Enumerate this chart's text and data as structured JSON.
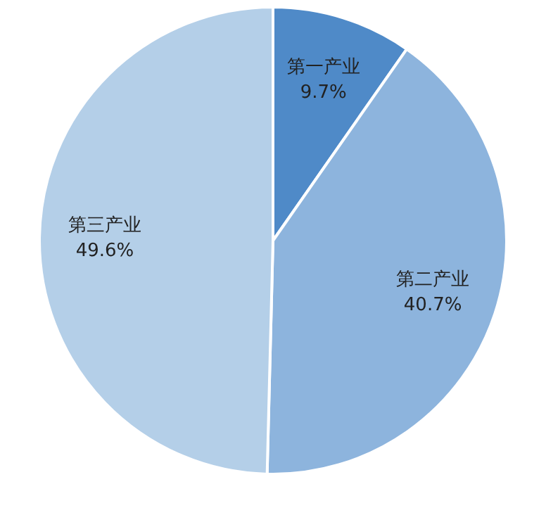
{
  "chart_data": {
    "type": "pie",
    "categories": [
      "第一产业",
      "第二产业",
      "第三产业"
    ],
    "values": [
      9.7,
      40.7,
      49.6
    ],
    "colors": [
      "#4f8ac8",
      "#8db4dd",
      "#b4cfe8"
    ],
    "value_labels": [
      "9.7%",
      "40.7%",
      "49.6%"
    ],
    "legend": false
  }
}
